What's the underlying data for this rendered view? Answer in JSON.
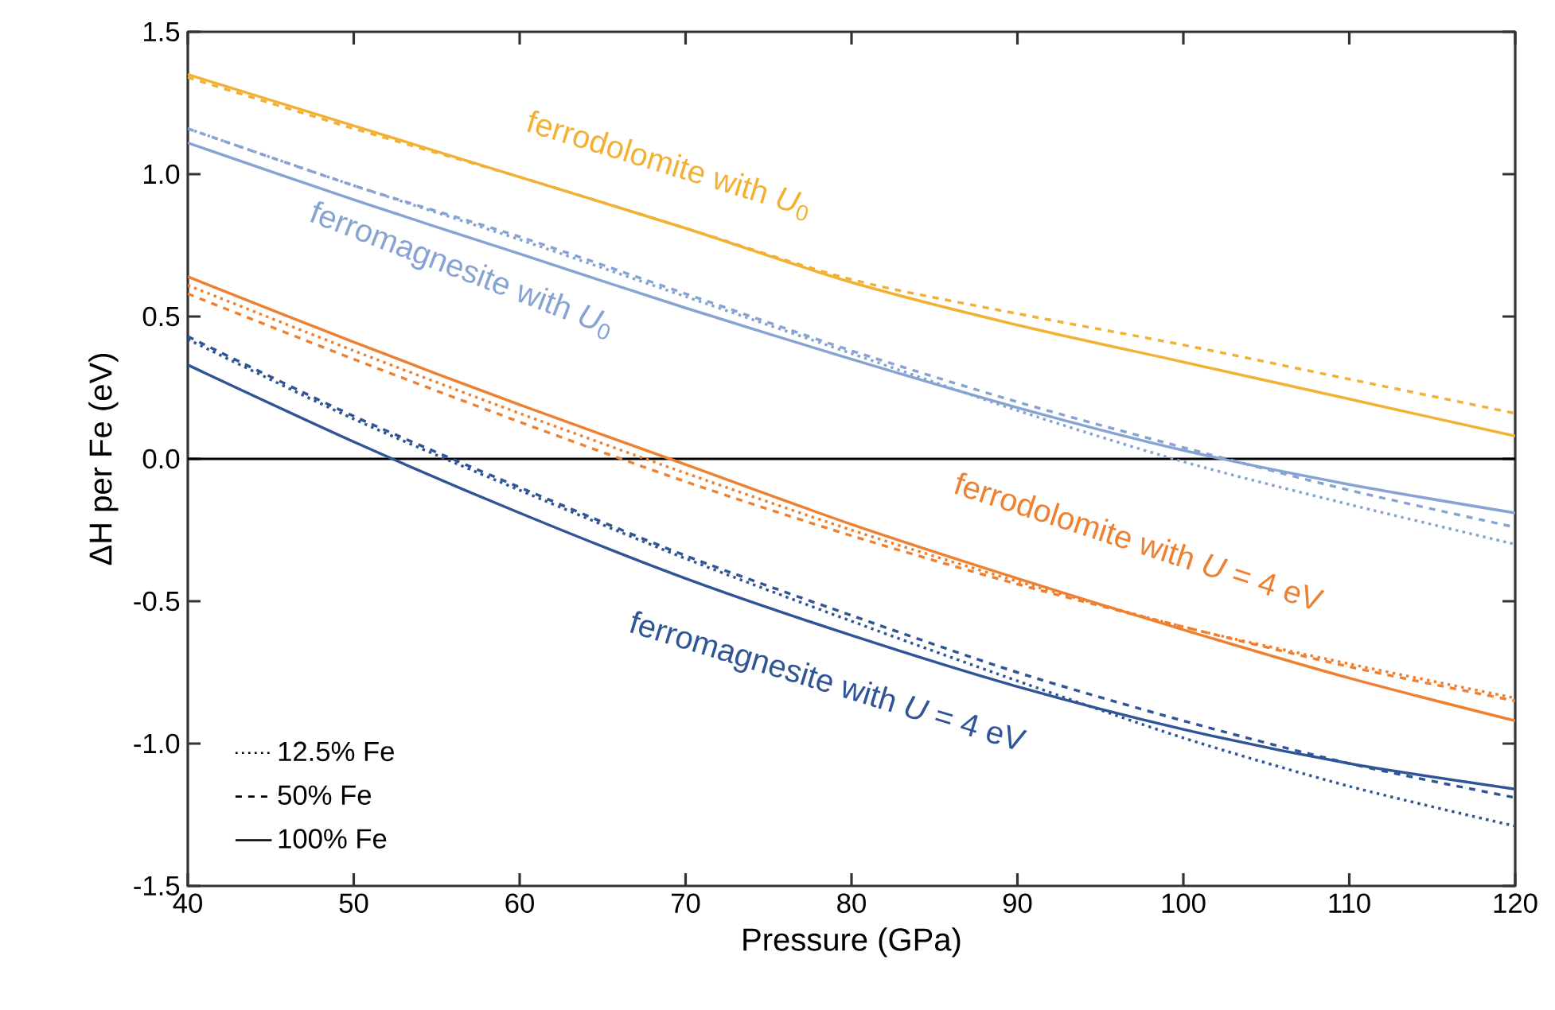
{
  "chart_data": {
    "type": "line",
    "xlabel": "Pressure (GPa)",
    "ylabel": "ΔH per Fe (eV)",
    "x": [
      40,
      50,
      60,
      70,
      80,
      90,
      100,
      110,
      120
    ],
    "xlim": [
      40,
      120
    ],
    "xticks": [
      40,
      50,
      60,
      70,
      80,
      90,
      100,
      110,
      120
    ],
    "ylim": [
      -1.5,
      1.5
    ],
    "yticks": [
      -1.5,
      {
        "value": -1.0,
        "label": "-1.0"
      },
      -0.5,
      {
        "value": 0,
        "label": "0.0"
      },
      0.5,
      {
        "value": 1.0,
        "label": "1.0"
      },
      1.5
    ],
    "legend": "bottom left",
    "grid": false,
    "marker": "none",
    "ref_lines": [
      {
        "axis": "y",
        "value": 0,
        "color": "#000000",
        "line_style": "solid"
      }
    ],
    "series": [
      {
        "color": "#f2b134",
        "line_style": "dashed",
        "values": [
          1.34,
          1.16,
          0.99,
          0.81,
          0.63,
          0.51,
          0.4,
          0.28,
          0.16
        ]
      },
      {
        "color": "#f2b134",
        "line_style": "solid",
        "values": [
          1.35,
          1.17,
          0.99,
          0.81,
          0.62,
          0.47,
          0.34,
          0.21,
          0.08
        ]
      },
      {
        "color": "#86a3d2",
        "line_style": "dotted",
        "values": [
          1.16,
          0.96,
          0.77,
          0.57,
          0.37,
          0.17,
          -0.01,
          -0.16,
          -0.3
        ]
      },
      {
        "color": "#86a3d2",
        "line_style": "dashed",
        "values": [
          1.16,
          0.96,
          0.78,
          0.58,
          0.38,
          0.2,
          0.04,
          -0.11,
          -0.24
        ]
      },
      {
        "color": "#86a3d2",
        "line_style": "solid",
        "values": [
          1.11,
          0.91,
          0.72,
          0.53,
          0.35,
          0.18,
          0.03,
          -0.09,
          -0.19
        ]
      },
      {
        "color": "#ee8131",
        "line_style": "dotted",
        "values": [
          0.61,
          0.38,
          0.16,
          -0.05,
          -0.25,
          -0.43,
          -0.59,
          -0.72,
          -0.84
        ]
      },
      {
        "color": "#ee8131",
        "line_style": "dashed",
        "values": [
          0.58,
          0.35,
          0.13,
          -0.08,
          -0.27,
          -0.44,
          -0.59,
          -0.73,
          -0.85
        ]
      },
      {
        "color": "#ee8131",
        "line_style": "solid",
        "values": [
          0.64,
          0.41,
          0.19,
          -0.02,
          -0.23,
          -0.42,
          -0.6,
          -0.77,
          -0.92
        ]
      },
      {
        "color": "#2f5597",
        "line_style": "dotted",
        "values": [
          0.42,
          0.14,
          -0.11,
          -0.35,
          -0.57,
          -0.78,
          -0.98,
          -1.15,
          -1.29
        ]
      },
      {
        "color": "#2f5597",
        "line_style": "dashed",
        "values": [
          0.43,
          0.15,
          -0.1,
          -0.34,
          -0.55,
          -0.75,
          -0.92,
          -1.07,
          -1.19
        ]
      },
      {
        "color": "#2f5597",
        "line_style": "solid",
        "values": [
          0.33,
          0.06,
          -0.19,
          -0.42,
          -0.62,
          -0.8,
          -0.95,
          -1.07,
          -1.16
        ]
      },
      {
        "name": "12.5% Fe",
        "color": "#000000",
        "line_style": "dotted",
        "values": [
          null,
          null,
          null,
          null,
          null,
          null,
          null,
          null,
          null
        ]
      },
      {
        "name": "50% Fe",
        "color": "#000000",
        "line_style": "dashed",
        "values": [
          null,
          null,
          null,
          null,
          null,
          null,
          null,
          null,
          null
        ]
      },
      {
        "name": "100% Fe",
        "color": "#000000",
        "line_style": "solid",
        "values": [
          null,
          null,
          null,
          null,
          null,
          null,
          null,
          null,
          null
        ]
      }
    ],
    "annotations": [
      "ferrodolomite with *U*$_{0}$",
      "ferromagnesite with *U*$_{0}$",
      "ferrodolomite with *U* = 4 eV",
      "ferromagnesite with *U* = 4 eV"
    ]
  }
}
